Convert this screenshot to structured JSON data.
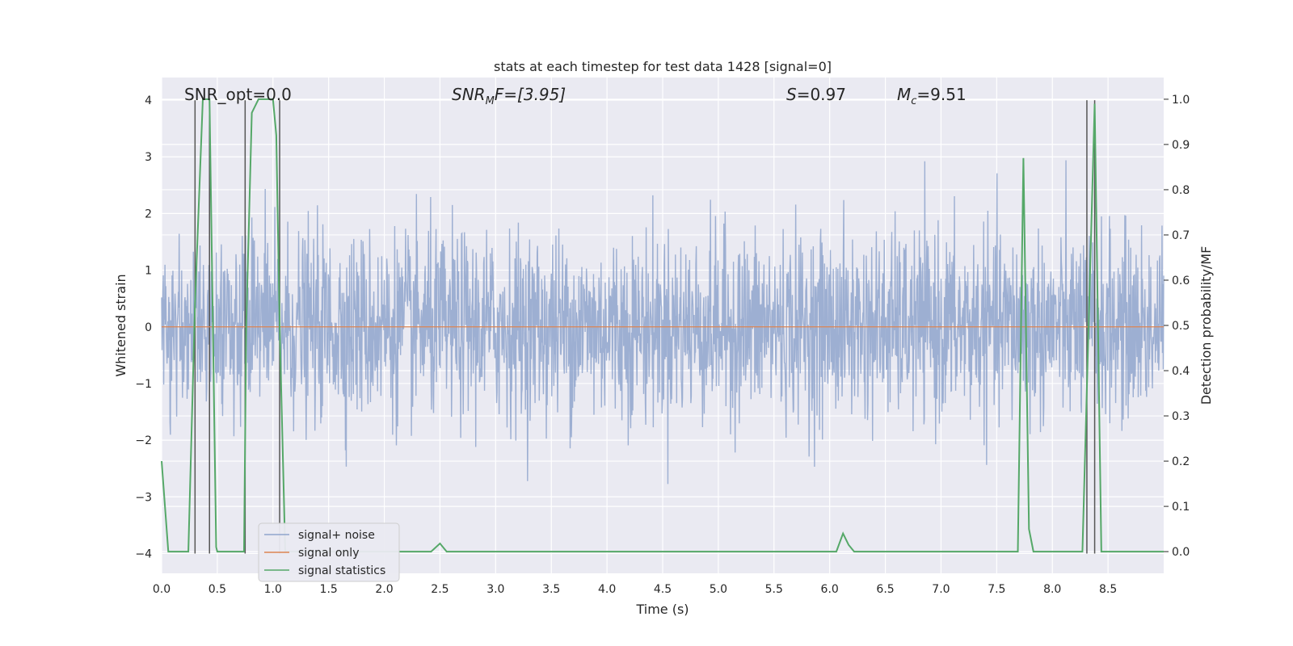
{
  "chart_data": {
    "type": "line",
    "title": "stats at each timestep for test data 1428 [signal=0]",
    "xlabel": "Time (s)",
    "ylabel": "Whitened strain",
    "y2label": "Detection probability/MF",
    "xlim": [
      0.0,
      9.0
    ],
    "ylim": [
      -4.35,
      4.4
    ],
    "y2lim": [
      -0.048,
      1.048
    ],
    "x_ticks": [
      "0.0",
      "0.5",
      "1.0",
      "1.5",
      "2.0",
      "2.5",
      "3.0",
      "3.5",
      "4.0",
      "4.5",
      "5.0",
      "5.5",
      "6.0",
      "6.5",
      "7.0",
      "7.5",
      "8.0",
      "8.5"
    ],
    "y_ticks": [
      "4",
      "3",
      "2",
      "1",
      "0",
      "−1",
      "−2",
      "−3",
      "−4"
    ],
    "y2_ticks": [
      "1.0",
      "0.9",
      "0.8",
      "0.7",
      "0.6",
      "0.5",
      "0.4",
      "0.3",
      "0.2",
      "0.1",
      "0.0"
    ],
    "grid": true,
    "legend_position": "lower-left",
    "annotations": {
      "snr_opt": "SNR_opt=0.0",
      "snr_mf_main": "SNR",
      "snr_mf_sub": "M",
      "snr_mf_rest": "F=[3.95]",
      "s_label": "S",
      "s_value": "=0.97",
      "mc_label": "M",
      "mc_sub": "c",
      "mc_value": "=9.51"
    },
    "series": [
      {
        "name": "signal+ noise",
        "color": "#8fa4cc",
        "note": "whitened strain noise, approx. zero-mean with std ~0.8, spikes to about +3.3 and -3.8"
      },
      {
        "name": "signal only",
        "color": "#dd8452",
        "values": "constant 0"
      },
      {
        "name": "signal statistics",
        "color": "#55a868",
        "axis": "right",
        "x": [
          0.0,
          0.06,
          0.24,
          0.3,
          0.37,
          0.43,
          0.49,
          0.5,
          0.6,
          0.74,
          0.76,
          0.81,
          0.87,
          1.0,
          1.03,
          1.06,
          1.11,
          1.2,
          2.42,
          2.5,
          2.56,
          6.06,
          6.12,
          6.17,
          6.22,
          7.69,
          7.74,
          7.79,
          7.83,
          8.27,
          8.38,
          8.44,
          8.6,
          9.0
        ],
        "values": [
          0.2,
          0.0,
          0.0,
          0.55,
          1.0,
          1.0,
          0.01,
          0.0,
          0.0,
          0.0,
          0.5,
          0.97,
          1.0,
          1.0,
          0.92,
          0.5,
          0.0,
          0.0,
          0.0,
          0.018,
          0.0,
          0.0,
          0.04,
          0.015,
          0.0,
          0.0,
          0.87,
          0.05,
          0.0,
          0.0,
          0.99,
          0.0,
          0.0,
          0.0
        ]
      }
    ],
    "vertical_markers_x": [
      0.3,
      0.43,
      0.75,
      1.06,
      8.31,
      8.38
    ]
  }
}
